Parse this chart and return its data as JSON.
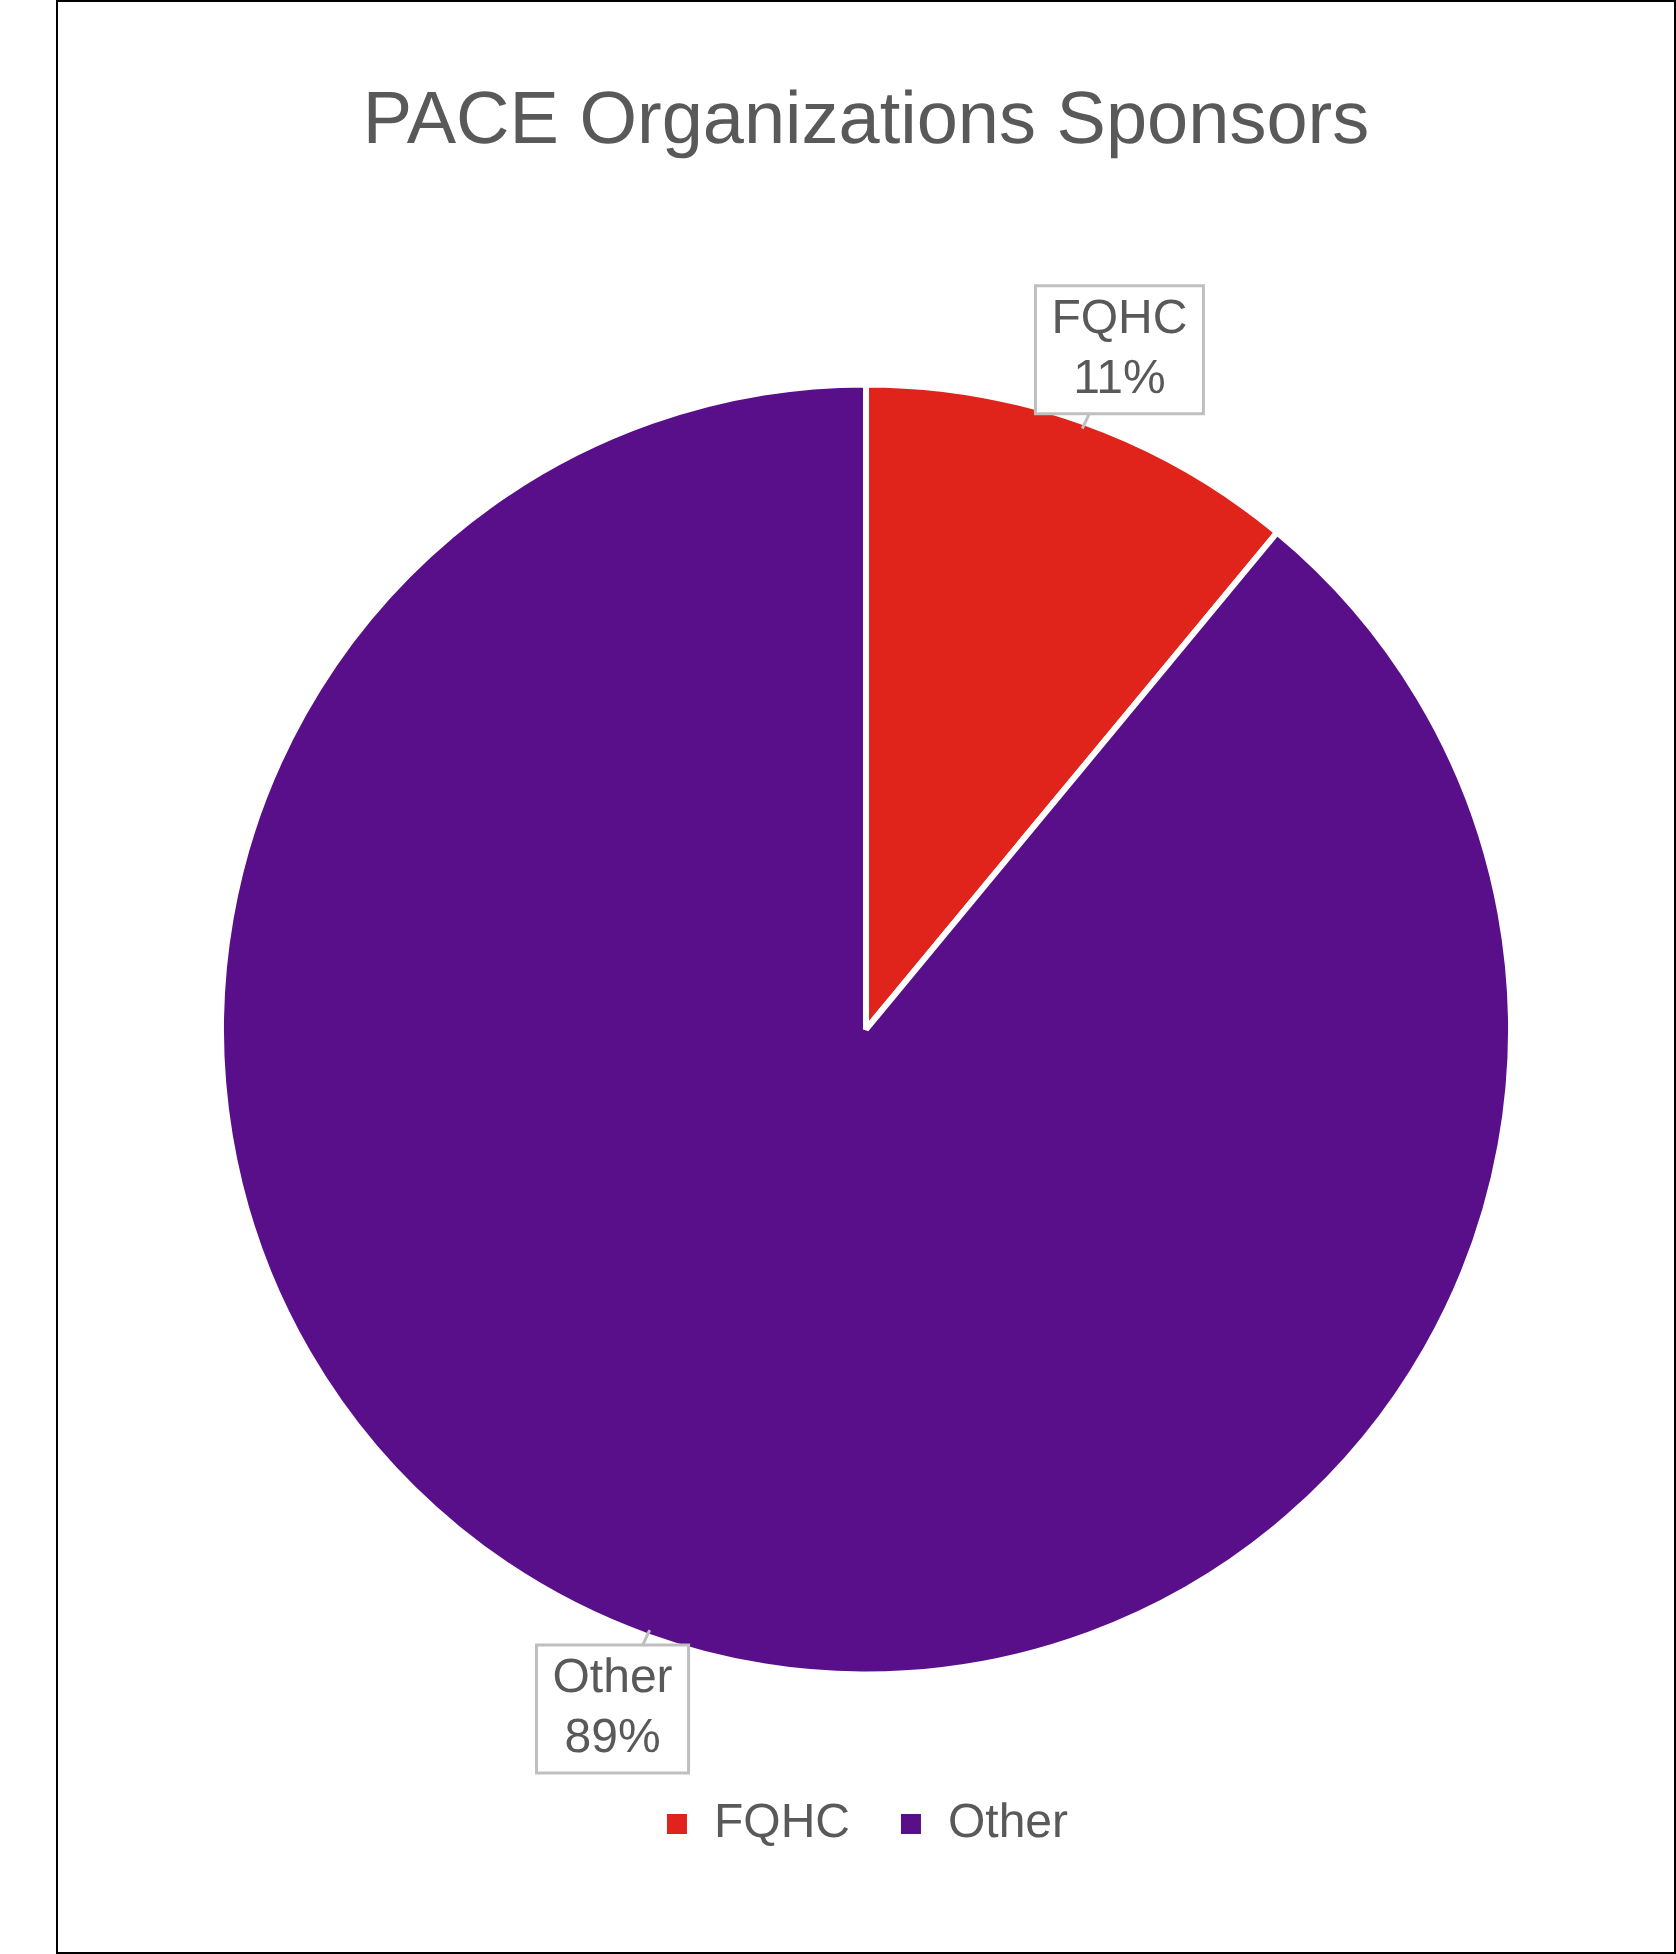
{
  "chart_data": {
    "type": "pie",
    "title": "PACE Organizations Sponsors",
    "categories": [
      "FQHC",
      "Other"
    ],
    "values": [
      11,
      89
    ],
    "colors": [
      "#e0241c",
      "#5a0f8a"
    ],
    "value_labels": [
      "11%",
      "89%"
    ],
    "legend": "bottom"
  }
}
